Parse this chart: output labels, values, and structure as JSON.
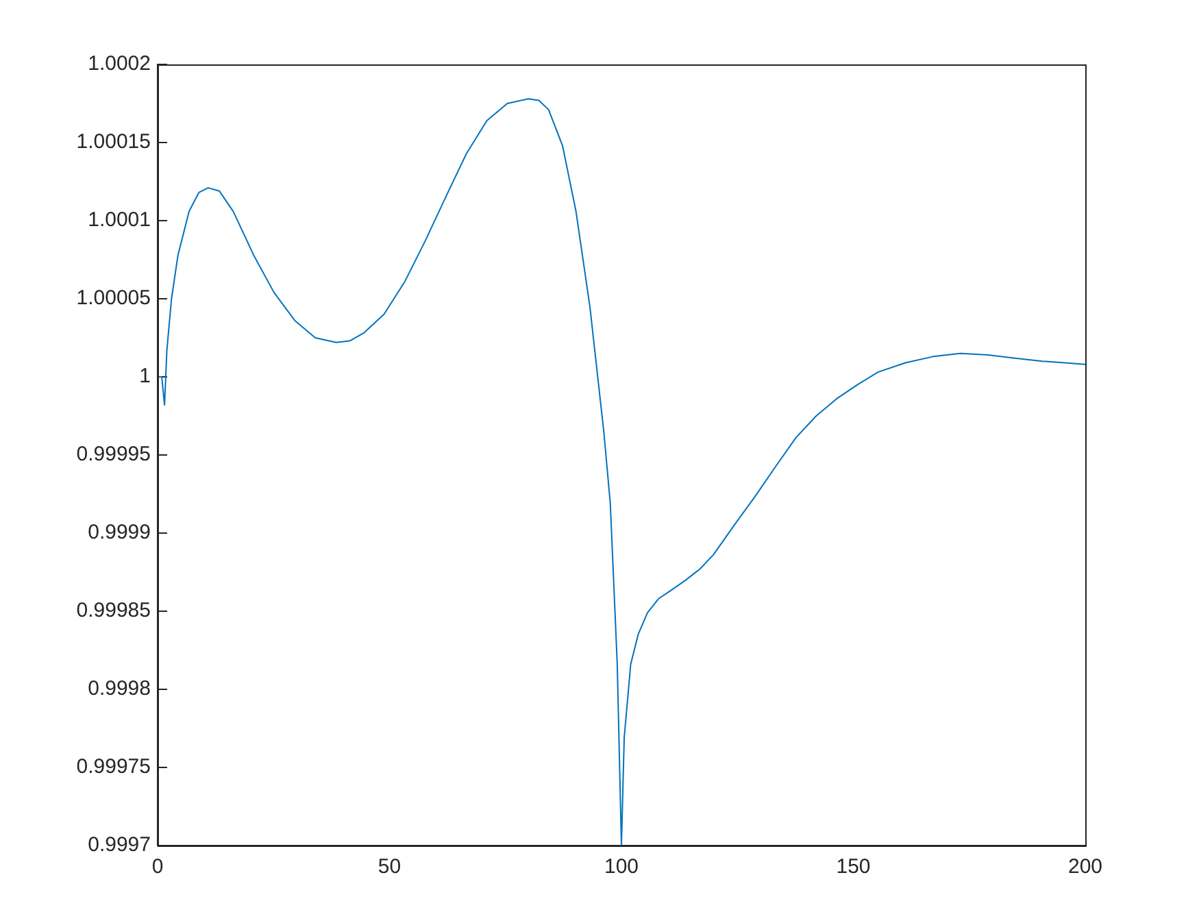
{
  "chart_data": {
    "type": "line",
    "x": [
      0,
      0.9,
      1.5,
      2,
      3,
      4.4,
      6.8,
      8.9,
      10.9,
      13.3,
      16.3,
      20.7,
      25.1,
      29.6,
      34,
      38.5,
      41.4,
      44.4,
      48.8,
      53.3,
      57.7,
      62.1,
      66.6,
      71,
      75.4,
      79.9,
      82.2,
      84.3,
      87.3,
      90.2,
      93.2,
      96.2,
      97.6,
      99.1,
      100,
      100.6,
      102,
      103.6,
      105.6,
      108,
      111,
      113.9,
      116.9,
      119.8,
      124.3,
      128.7,
      133.1,
      137.6,
      142,
      146.4,
      150.9,
      155.3,
      161.2,
      167.2,
      173.1,
      179,
      184.9,
      190.8,
      200
    ],
    "series": [
      {
        "color": "#0072bd",
        "values": [
          1,
          1,
          0.999982,
          1.000017,
          1.00005,
          1.000078,
          1.000106,
          1.000118,
          1.000121,
          1.000119,
          1.000106,
          1.000078,
          1.000054,
          1.000036,
          1.000025,
          1.000022,
          1.000023,
          1.000028,
          1.00004,
          1.000061,
          1.000087,
          1.000115,
          1.000143,
          1.000164,
          1.000175,
          1.000178,
          1.000177,
          1.000171,
          1.000148,
          1.000106,
          1.000045,
          0.999965,
          0.999919,
          0.999816,
          0.9997,
          0.999769,
          0.999816,
          0.999835,
          0.999849,
          0.999858,
          0.999864,
          0.99987,
          0.999877,
          0.999886,
          0.999905,
          0.999923,
          0.999942,
          0.999961,
          0.999975,
          0.999986,
          0.999995,
          1.000003,
          1.000009,
          1.000013,
          1.000015,
          1.000014,
          1.000012,
          1.00001,
          1.000008
        ]
      }
    ],
    "xlim": [
      0,
      200
    ],
    "xticks": [
      0,
      50,
      100,
      150,
      200
    ],
    "ylim": [
      0.9997,
      1.0002
    ],
    "yticks": [
      0.9997,
      0.99975,
      0.9998,
      0.99985,
      0.9999,
      0.99995,
      1,
      1.00005,
      1.0001,
      1.00015,
      1.0002
    ],
    "grid": false,
    "legend": false,
    "marker": "none",
    "line_style": "solid"
  }
}
